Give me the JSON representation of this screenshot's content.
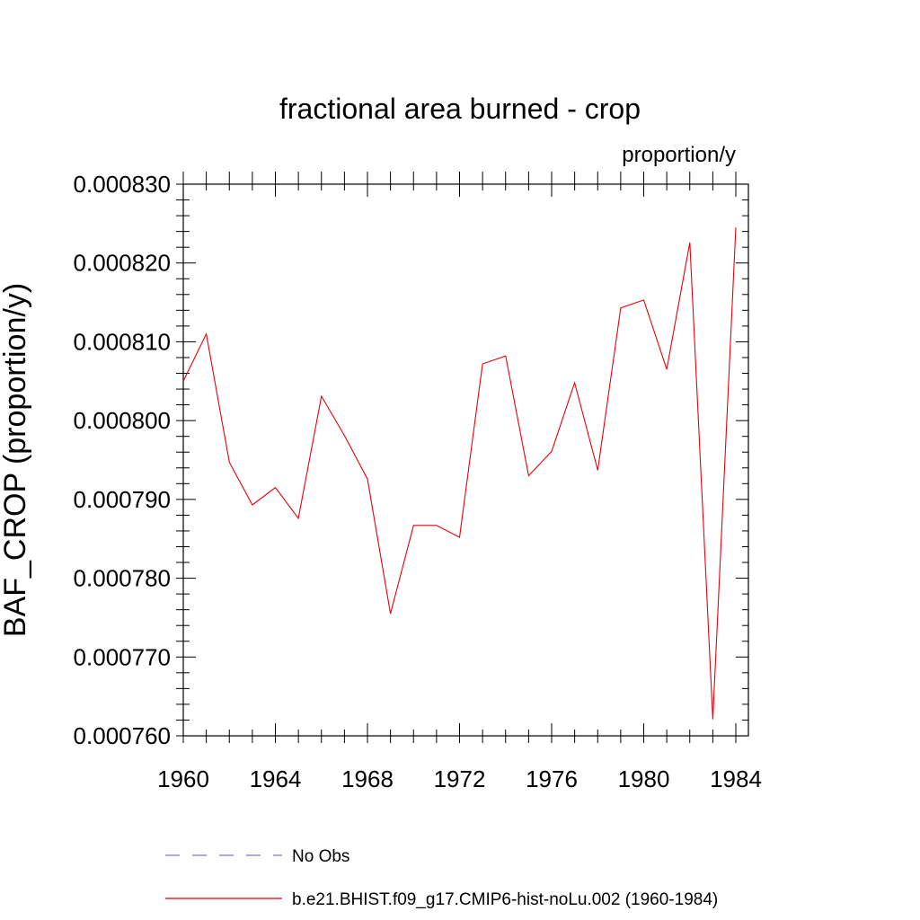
{
  "chart_data": {
    "type": "line",
    "title": "fractional area burned - crop",
    "units": "proportion/y",
    "ylabel": "BAF_CROP  (proportion/y)",
    "xlabel": "",
    "xlim": [
      1960,
      1984
    ],
    "ylim": [
      0.00076,
      0.00083
    ],
    "xticks": [
      1960,
      1964,
      1968,
      1972,
      1976,
      1980,
      1984
    ],
    "xtick_labels": [
      "1960",
      "1964",
      "1968",
      "1972",
      "1976",
      "1980",
      "1984"
    ],
    "yticks": [
      0.00076,
      0.00077,
      0.00078,
      0.00079,
      0.0008,
      0.00081,
      0.00082,
      0.00083
    ],
    "ytick_labels": [
      "0.000760",
      "0.000770",
      "0.000780",
      "0.000790",
      "0.000800",
      "0.000810",
      "0.000820",
      "0.000830"
    ],
    "grid": false,
    "legend_position": "bottom",
    "series": [
      {
        "name": "b.e21.BHIST.f09_g17.CMIP6-hist-noLu.002 (1960-1984)",
        "color": "#e8000b",
        "style": "solid",
        "x": [
          1960,
          1961,
          1962,
          1963,
          1964,
          1965,
          1966,
          1967,
          1968,
          1969,
          1970,
          1971,
          1972,
          1973,
          1974,
          1975,
          1976,
          1977,
          1978,
          1979,
          1980,
          1981,
          1982,
          1983,
          1984
        ],
        "values": [
          0.000805,
          0.000811,
          0.0007947,
          0.0007893,
          0.0007915,
          0.0007876,
          0.0008031,
          0.0007981,
          0.0007926,
          0.0007755,
          0.0007867,
          0.0007867,
          0.0007852,
          0.0008072,
          0.0008082,
          0.000793,
          0.0007961,
          0.0008048,
          0.0007937,
          0.0008143,
          0.0008153,
          0.0008065,
          0.0008226,
          0.0007621,
          0.0008245
        ]
      }
    ],
    "legend": [
      {
        "label": "No Obs",
        "color": "#7b76c9",
        "style": "dashed"
      },
      {
        "label": "b.e21.BHIST.f09_g17.CMIP6-hist-noLu.002 (1960-1984)",
        "color": "#e8000b",
        "style": "solid"
      }
    ]
  }
}
